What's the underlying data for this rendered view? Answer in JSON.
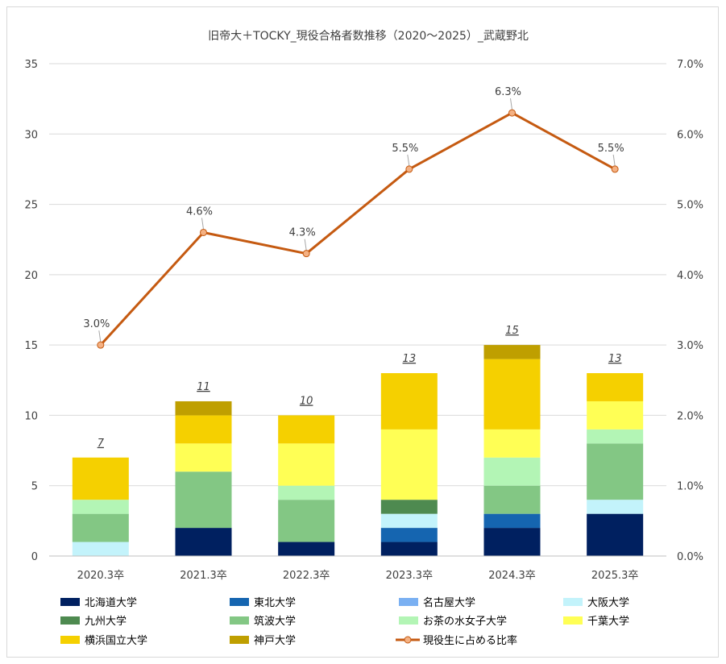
{
  "chart_data": {
    "type": "bar",
    "title": "旧帝大＋TOCKY_現役合格者数推移（2020～2025）_武蔵野北",
    "categories": [
      "2020.3卒",
      "2021.3卒",
      "2022.3卒",
      "2023.3卒",
      "2024.3卒",
      "2025.3卒"
    ],
    "stacked": true,
    "ylim": [
      0,
      35
    ],
    "yticks": [
      0,
      5,
      10,
      15,
      20,
      25,
      30,
      35
    ],
    "y2lim": [
      0.0,
      0.07
    ],
    "y2ticks": [
      "0.0%",
      "1.0%",
      "2.0%",
      "3.0%",
      "4.0%",
      "5.0%",
      "6.0%",
      "7.0%"
    ],
    "grid": true,
    "legend_position": "bottom",
    "series": [
      {
        "name": "北海道大学",
        "color": "#002060",
        "values": [
          0,
          2,
          1,
          1,
          2,
          3
        ]
      },
      {
        "name": "東北大学",
        "color": "#1565b0",
        "values": [
          0,
          0,
          0,
          1,
          1,
          0
        ]
      },
      {
        "name": "名古屋大学",
        "color": "#7ab0f2",
        "values": [
          0,
          0,
          0,
          0,
          0,
          0
        ]
      },
      {
        "name": "大阪大学",
        "color": "#c3f3fb",
        "values": [
          1,
          0,
          0,
          1,
          0,
          1
        ]
      },
      {
        "name": "九州大学",
        "color": "#4e8a50",
        "values": [
          0,
          0,
          0,
          1,
          0,
          0
        ]
      },
      {
        "name": "筑波大学",
        "color": "#83c784",
        "values": [
          2,
          4,
          3,
          0,
          2,
          4
        ]
      },
      {
        "name": "お茶の水女子大学",
        "color": "#b3f5b5",
        "values": [
          1,
          0,
          1,
          0,
          2,
          1
        ]
      },
      {
        "name": "千葉大学",
        "color": "#ffff55",
        "values": [
          0,
          2,
          3,
          5,
          2,
          2
        ]
      },
      {
        "name": "横浜国立大学",
        "color": "#f5d000",
        "values": [
          3,
          2,
          2,
          4,
          5,
          2
        ]
      },
      {
        "name": "神戸大学",
        "color": "#bf9f00",
        "values": [
          0,
          1,
          0,
          0,
          1,
          0
        ]
      }
    ],
    "totals": [
      "7",
      "11",
      "10",
      "13",
      "15",
      "13"
    ],
    "line_series": {
      "name": "現役生に占める比率",
      "color": "#c55a11",
      "marker_color": "#f4b183",
      "values": [
        0.03,
        0.046,
        0.043,
        0.055,
        0.063,
        0.055
      ],
      "labels": [
        "3.0%",
        "4.6%",
        "4.3%",
        "5.5%",
        "6.3%",
        "5.5%"
      ]
    }
  }
}
